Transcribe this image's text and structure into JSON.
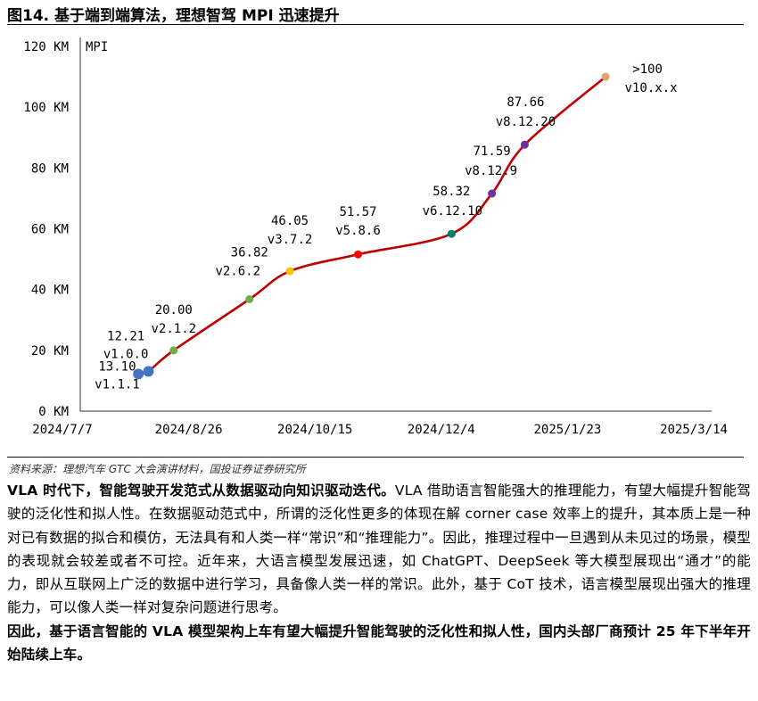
{
  "figure_title": "图14. 基于端到端算法，理想智驾 MPI 迅速提升",
  "source": "资料来源：理想汽车 GTC 大会演讲材料，国投证券证券研究所",
  "paragraphs": {
    "p1_bold": "VLA 时代下，智能驾驶开发范式从数据驱动向知识驱动迭代。",
    "p1_text": "VLA 借助语言智能强大的推理能力，有望大幅提升智能驾驶的泛化性和拟人性。在数据驱动范式中，所谓的泛化性更多的体现在解 corner case 效率上的提升，其本质上是一种对已有数据的拟合和模仿，无法具有和人类一样“常识”和“推理能力”。因此，推理过程中一旦遇到从未见过的场景，模型的表现就会较差或者不可控。近年来，大语言模型发展迅速，如 ChatGPT、DeepSeek 等大模型展现出“通才”的能力，即从互联网上广泛的数据中进行学习，具备像人类一样的常识。此外，基于 CoT 技术，语言模型展现出强大的推理能力，可以像人类一样对复杂问题进行思考。",
    "p2_bold": "因此，基于语言智能的 VLA 模型架构上车有望大幅提升智能驾驶的泛化性和拟人性，国内头部厂商预计 25 年下半年开始陆续上车。"
  },
  "chart_data": {
    "type": "line",
    "ylabel": "MPI",
    "y_ticks": [
      "0 KM",
      "20 KM",
      "40 KM",
      "60 KM",
      "80 KM",
      "100 KM",
      "120 KM"
    ],
    "ylim": [
      0,
      120
    ],
    "x_ticks": [
      "2024/7/7",
      "2024/8/26",
      "2024/10/15",
      "2024/12/4",
      "2025/1/23",
      "2025/3/14"
    ],
    "xlim": [
      "2024-07-07",
      "2025-03-14"
    ],
    "line_color": "#c00000",
    "points": [
      {
        "date": "2024-07-30",
        "value": 12.21,
        "color": "#4472c4",
        "labels": [
          "12.21",
          "v1.0.0"
        ]
      },
      {
        "date": "2024-08-03",
        "value": 13.1,
        "color": "#4472c4",
        "labels": [
          "13.10",
          "v1.1.1"
        ]
      },
      {
        "date": "2024-08-13",
        "value": 20.0,
        "color": "#70ad47",
        "labels": [
          "20.00",
          "v2.1.2"
        ]
      },
      {
        "date": "2024-09-12",
        "value": 36.82,
        "color": "#70ad47",
        "labels": [
          "36.82",
          "v2.6.2"
        ]
      },
      {
        "date": "2024-09-28",
        "value": 46.05,
        "color": "#ffc000",
        "labels": [
          "46.05",
          "v3.7.2"
        ]
      },
      {
        "date": "2024-10-25",
        "value": 51.57,
        "color": "#ff0000",
        "labels": [
          "51.57",
          "v5.8.6"
        ]
      },
      {
        "date": "2024-12-01",
        "value": 58.32,
        "color": "#00806e",
        "labels": [
          "58.32",
          "v6.12.10"
        ]
      },
      {
        "date": "2024-12-17",
        "value": 71.59,
        "color": "#7030a0",
        "labels": [
          "71.59",
          "v8.12.9"
        ]
      },
      {
        "date": "2024-12-30",
        "value": 87.66,
        "color": "#7030a0",
        "labels": [
          "87.66",
          "v8.12.20"
        ]
      },
      {
        "date": "2025-01-31",
        "value": 110,
        "color": "#d9a66c",
        "labels": [
          ">100",
          "v10.x.x"
        ]
      }
    ]
  }
}
